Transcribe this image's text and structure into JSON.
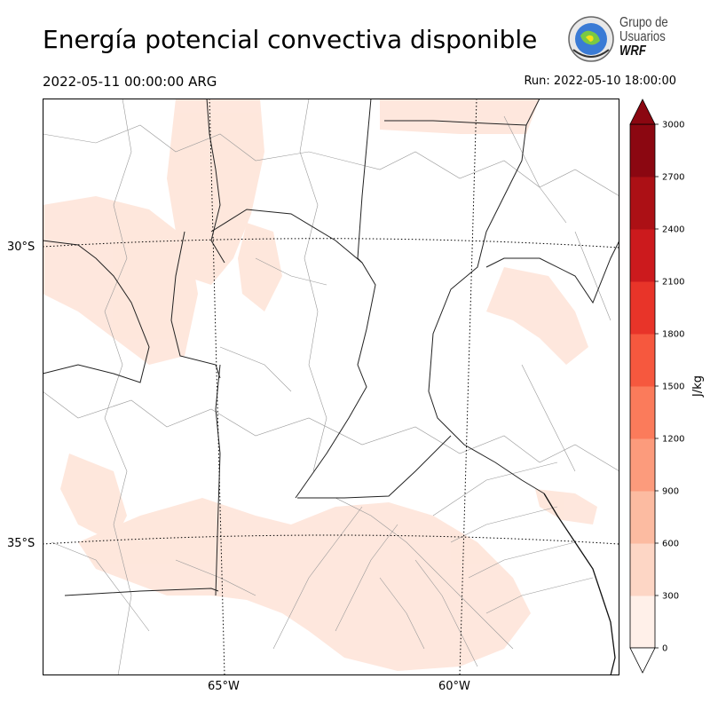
{
  "title": "Energía potencial convectiva disponible",
  "valid_time": "2022-05-11 00:00:00 ARG",
  "run_time": "Run: 2022-05-10 18:00:00",
  "logo": {
    "line1": "Grupo de",
    "line2": "Usuarios",
    "line3": "WRF"
  },
  "axes": {
    "lat_labels": [
      "30°S",
      "35°S"
    ],
    "lon_labels": [
      "65°W",
      "60°W"
    ]
  },
  "colorbar": {
    "label": "J/kg",
    "ticks": [
      "0",
      "300",
      "600",
      "900",
      "1200",
      "1500",
      "1800",
      "2100",
      "2400",
      "2700",
      "3000"
    ],
    "colors": [
      "#fff0e9",
      "#fdd6c5",
      "#fcbba1",
      "#fc9b7c",
      "#fb7b5b",
      "#f6583e",
      "#e83429",
      "#cc1a1d",
      "#ac1015",
      "#8b0711"
    ],
    "extend": "both"
  },
  "field_color": "#fee3d7"
}
